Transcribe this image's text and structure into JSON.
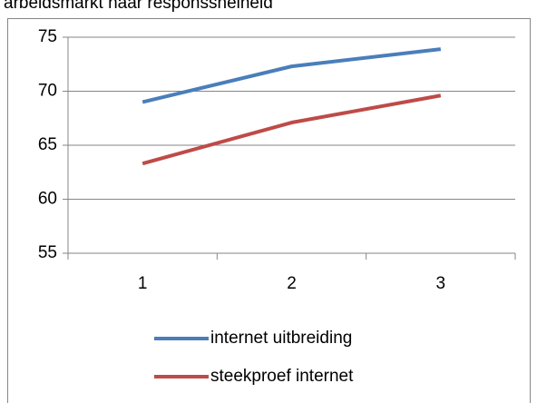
{
  "chart_data": {
    "type": "line",
    "title": "arbeidsmarkt naar responssnelheid",
    "categories": [
      "1",
      "2",
      "3"
    ],
    "series": [
      {
        "name": "internet uitbreiding",
        "color": "#4a7ebb",
        "values": [
          69.0,
          72.3,
          73.9
        ]
      },
      {
        "name": "steekproef internet",
        "color": "#be4b48",
        "values": [
          63.3,
          67.1,
          69.6
        ]
      }
    ],
    "ylim": [
      55,
      75
    ],
    "yticks": [
      55,
      60,
      65,
      70,
      75
    ],
    "grid": true,
    "legend": "bottom"
  }
}
